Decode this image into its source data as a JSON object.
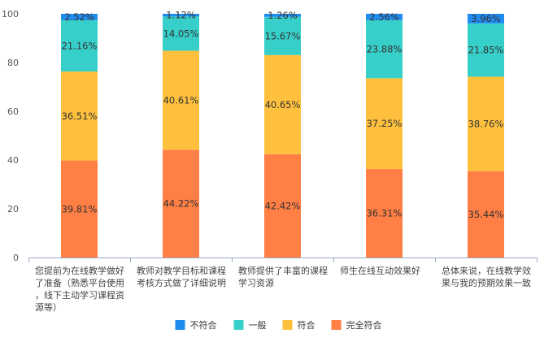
{
  "chart_data": {
    "type": "bar",
    "stacked": true,
    "grid": false,
    "legend_position": "bottom",
    "ylim": [
      0,
      100
    ],
    "yticks": [
      0,
      20,
      40,
      60,
      80,
      100
    ],
    "categories": [
      "您提前为在线教学做好了准备（熟悉平台使用，线下主动学习课程资源等）",
      "教师对教学目标和课程考核方式做了详细说明",
      "教师提供了丰富的课程学习资源",
      "师生在线互动效果好",
      "总体来说，在线教学效果与我的预期效果一致"
    ],
    "category_lines": [
      [
        "您提前为在线教学做好",
        "了准备（熟悉平台使用",
        "，线下主动学习课程资",
        "源等）"
      ],
      [
        "教师对教学目标和课程",
        "考核方式做了详细说明"
      ],
      [
        "教师提供了丰富的课程",
        "学习资源"
      ],
      [
        "师生在线互动效果好"
      ],
      [
        "总体来说，在线教学效",
        "果与我的预期效果一致"
      ]
    ],
    "series": [
      {
        "name": "完全符合",
        "color": "#FF7F45",
        "values": [
          39.81,
          44.22,
          42.42,
          36.31,
          35.44
        ],
        "labels": [
          "39.81%",
          "44.22%",
          "42.42%",
          "36.31%",
          "35.44%"
        ]
      },
      {
        "name": "符合",
        "color": "#FFC13D",
        "values": [
          36.51,
          40.61,
          40.65,
          37.25,
          38.76
        ],
        "labels": [
          "36.51%",
          "40.61%",
          "40.65%",
          "37.25%",
          "38.76%"
        ]
      },
      {
        "name": "一般",
        "color": "#37CFC9",
        "values": [
          21.16,
          14.05,
          15.67,
          23.88,
          21.85
        ],
        "labels": [
          "21.16%",
          "14.05%",
          "15.67%",
          "23.88%",
          "21.85%"
        ]
      },
      {
        "name": "不符合",
        "color": "#1F8CF0",
        "values": [
          2.52,
          1.12,
          1.26,
          2.56,
          3.96
        ],
        "labels": [
          "2.52%",
          "1.12%",
          "1.26%",
          "2.56%",
          "3.96%"
        ]
      }
    ],
    "legend_order": [
      "不符合",
      "一般",
      "符合",
      "完全符合"
    ]
  }
}
